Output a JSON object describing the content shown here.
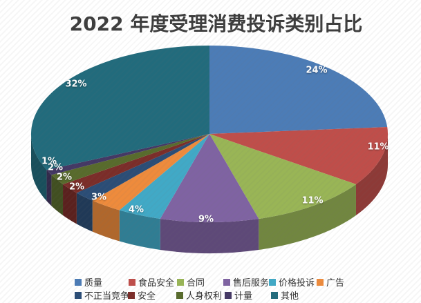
{
  "chart_data": {
    "type": "pie",
    "style": "3d-pie",
    "title": "2022 年度受理消费投诉类别占比",
    "categories": [
      "质量",
      "食品安全",
      "合同",
      "售后服务",
      "价格投诉",
      "广告",
      "不正当竞争",
      "安全",
      "人身权利",
      "计量",
      "其他"
    ],
    "values": [
      24,
      11,
      11,
      9,
      4,
      3,
      2,
      2,
      2,
      1,
      32
    ],
    "unit": "%",
    "labels": [
      "24%",
      "11%",
      "11%",
      "9%",
      "4%",
      "3%",
      "2%",
      "2%",
      "2%",
      "1%",
      "32%"
    ],
    "colors": [
      "#4C7CB6",
      "#BF4E4A",
      "#99B556",
      "#7F63A2",
      "#41A9C6",
      "#EE8B3C",
      "#2B4D76",
      "#7B2D29",
      "#586B2C",
      "#443864",
      "#226B7C"
    ],
    "start_angle_deg": 0,
    "direction": "clockwise",
    "legend_position": "bottom",
    "label_color": "#ffffff",
    "title_color": "#3d3d3d",
    "legend_text_color": "#333333",
    "background_color": "#ffffff"
  }
}
